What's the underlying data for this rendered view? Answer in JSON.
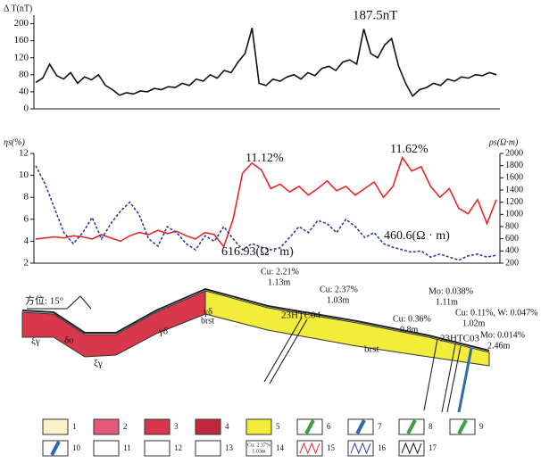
{
  "chart_data": [
    {
      "type": "line",
      "y_label": "Δ T(nT)",
      "annotation": "187.5nT",
      "ylim": [
        0,
        220
      ],
      "yticks": [
        0,
        40,
        80,
        120,
        160,
        200
      ],
      "series": [
        {
          "color": "#111111",
          "values": [
            62,
            72,
            105,
            78,
            70,
            85,
            60,
            75,
            68,
            80,
            55,
            45,
            32,
            38,
            35,
            42,
            40,
            48,
            45,
            52,
            50,
            60,
            55,
            70,
            65,
            80,
            72,
            90,
            85,
            110,
            130,
            190,
            60,
            55,
            70,
            65,
            75,
            80,
            70,
            85,
            78,
            95,
            100,
            90,
            110,
            115,
            105,
            187.5,
            130,
            120,
            150,
            165,
            100,
            60,
            30,
            45,
            50,
            60,
            55,
            70,
            65,
            75,
            72,
            80,
            78,
            85,
            80
          ]
        }
      ]
    },
    {
      "type": "line",
      "y_label": "ηs(%)",
      "y2_label": "ρs(Ω·m)",
      "annotations": [
        "11.12%",
        "11.62%",
        "616.93(Ω · m)",
        "460.6(Ω · m)"
      ],
      "ylim": [
        2,
        12
      ],
      "yticks": [
        2,
        4,
        6,
        8,
        10,
        12
      ],
      "y2lim": [
        200,
        2000
      ],
      "y2ticks": [
        200,
        400,
        600,
        800,
        1000,
        1200,
        1400,
        1600,
        1800,
        2000
      ],
      "series": [
        {
          "color": "#e8262a",
          "values": [
            4.2,
            4.3,
            4.4,
            4.3,
            4.5,
            4.4,
            4.2,
            4.6,
            4.3,
            4.0,
            4.5,
            4.8,
            4.6,
            5.0,
            4.7,
            4.9,
            4.5,
            4.2,
            4.8,
            4.6,
            3.5,
            6.0,
            10.2,
            11.12,
            10.5,
            8.8,
            9.2,
            8.5,
            9.0,
            8.2,
            8.8,
            9.5,
            8.6,
            9.0,
            8.2,
            8.8,
            9.4,
            8.0,
            9.0,
            11.62,
            10.4,
            10.8,
            9.0,
            8.0,
            8.8,
            7.0,
            6.5,
            7.8,
            5.6,
            7.8
          ]
        },
        {
          "color": "#2b3a9e",
          "axis": "y2",
          "dashed": true,
          "values": [
            1800,
            1500,
            1100,
            700,
            520,
            700,
            950,
            600,
            850,
            1050,
            1200,
            1000,
            600,
            480,
            800,
            700,
            520,
            420,
            650,
            560,
            800,
            600,
            420,
            520,
            460,
            420,
            450,
            620,
            800,
            700,
            900,
            850,
            700,
            920,
            800,
            620,
            700,
            520,
            460,
            420,
            380,
            400,
            300,
            350,
            300,
            250,
            320,
            350,
            300,
            330
          ]
        }
      ]
    }
  ],
  "section": {
    "orientation": "方位: 15°",
    "rock_labels": [
      "ξγ",
      "δο",
      "ξγ",
      "γδ",
      "γδ",
      "brst",
      "brst"
    ],
    "trenches": [
      "23HTC04",
      "23HTC03"
    ],
    "notes": [
      [
        "Cu: 2.21%",
        "1.13m"
      ],
      [
        "Cu: 2.37%",
        "1.03m"
      ],
      [
        "Mo: 0.038%",
        "1.11m"
      ],
      [
        "Cu: 0.36%",
        "0.8m"
      ],
      [
        "Cu: 0.11%,  W: 0.047%",
        "1.02m"
      ],
      [
        "Mo: 0.014%",
        "2.46m"
      ]
    ]
  },
  "legend": {
    "items": [
      "1",
      "2",
      "3",
      "4",
      "5",
      "6",
      "7",
      "8",
      "9",
      "10",
      "11",
      "12",
      "13",
      "14",
      "15",
      "16",
      "17"
    ],
    "sample": [
      "Cu: 2.37%",
      "1.03m"
    ]
  }
}
